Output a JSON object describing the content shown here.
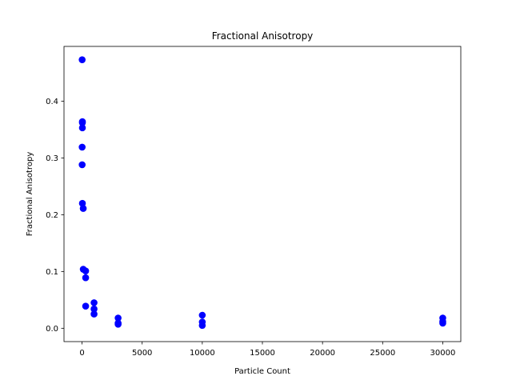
{
  "chart_data": {
    "type": "scatter",
    "title": "Fractional Anisotropy",
    "xlabel": "Particle Count",
    "ylabel": "Fractional Anisotropy",
    "xlim": [
      -1500,
      31500
    ],
    "ylim": [
      -0.0235,
      0.4965
    ],
    "xticks": [
      0,
      5000,
      10000,
      15000,
      20000,
      25000,
      30000
    ],
    "yticks": [
      0.0,
      0.1,
      0.2,
      0.3,
      0.4
    ],
    "xtick_labels": [
      "0",
      "5000",
      "10000",
      "15000",
      "20000",
      "25000",
      "30000"
    ],
    "ytick_labels": [
      "0.0",
      "0.1",
      "0.2",
      "0.3",
      "0.4"
    ],
    "grid": false,
    "marker_color": "#0000ff",
    "series": [
      {
        "points": [
          {
            "x": 10,
            "y": 0.473
          },
          {
            "x": 30,
            "y": 0.364
          },
          {
            "x": 30,
            "y": 0.362
          },
          {
            "x": 30,
            "y": 0.353
          },
          {
            "x": 10,
            "y": 0.319
          },
          {
            "x": 10,
            "y": 0.288
          },
          {
            "x": 30,
            "y": 0.22
          },
          {
            "x": 100,
            "y": 0.211
          },
          {
            "x": 100,
            "y": 0.104
          },
          {
            "x": 300,
            "y": 0.101
          },
          {
            "x": 300,
            "y": 0.089
          },
          {
            "x": 300,
            "y": 0.039
          },
          {
            "x": 1000,
            "y": 0.045
          },
          {
            "x": 1000,
            "y": 0.034
          },
          {
            "x": 1000,
            "y": 0.025
          },
          {
            "x": 3000,
            "y": 0.018
          },
          {
            "x": 3000,
            "y": 0.009
          },
          {
            "x": 3000,
            "y": 0.007
          },
          {
            "x": 10000,
            "y": 0.023
          },
          {
            "x": 10000,
            "y": 0.011
          },
          {
            "x": 10000,
            "y": 0.005
          },
          {
            "x": 30000,
            "y": 0.018
          },
          {
            "x": 30000,
            "y": 0.012
          },
          {
            "x": 30000,
            "y": 0.009
          }
        ]
      }
    ]
  }
}
